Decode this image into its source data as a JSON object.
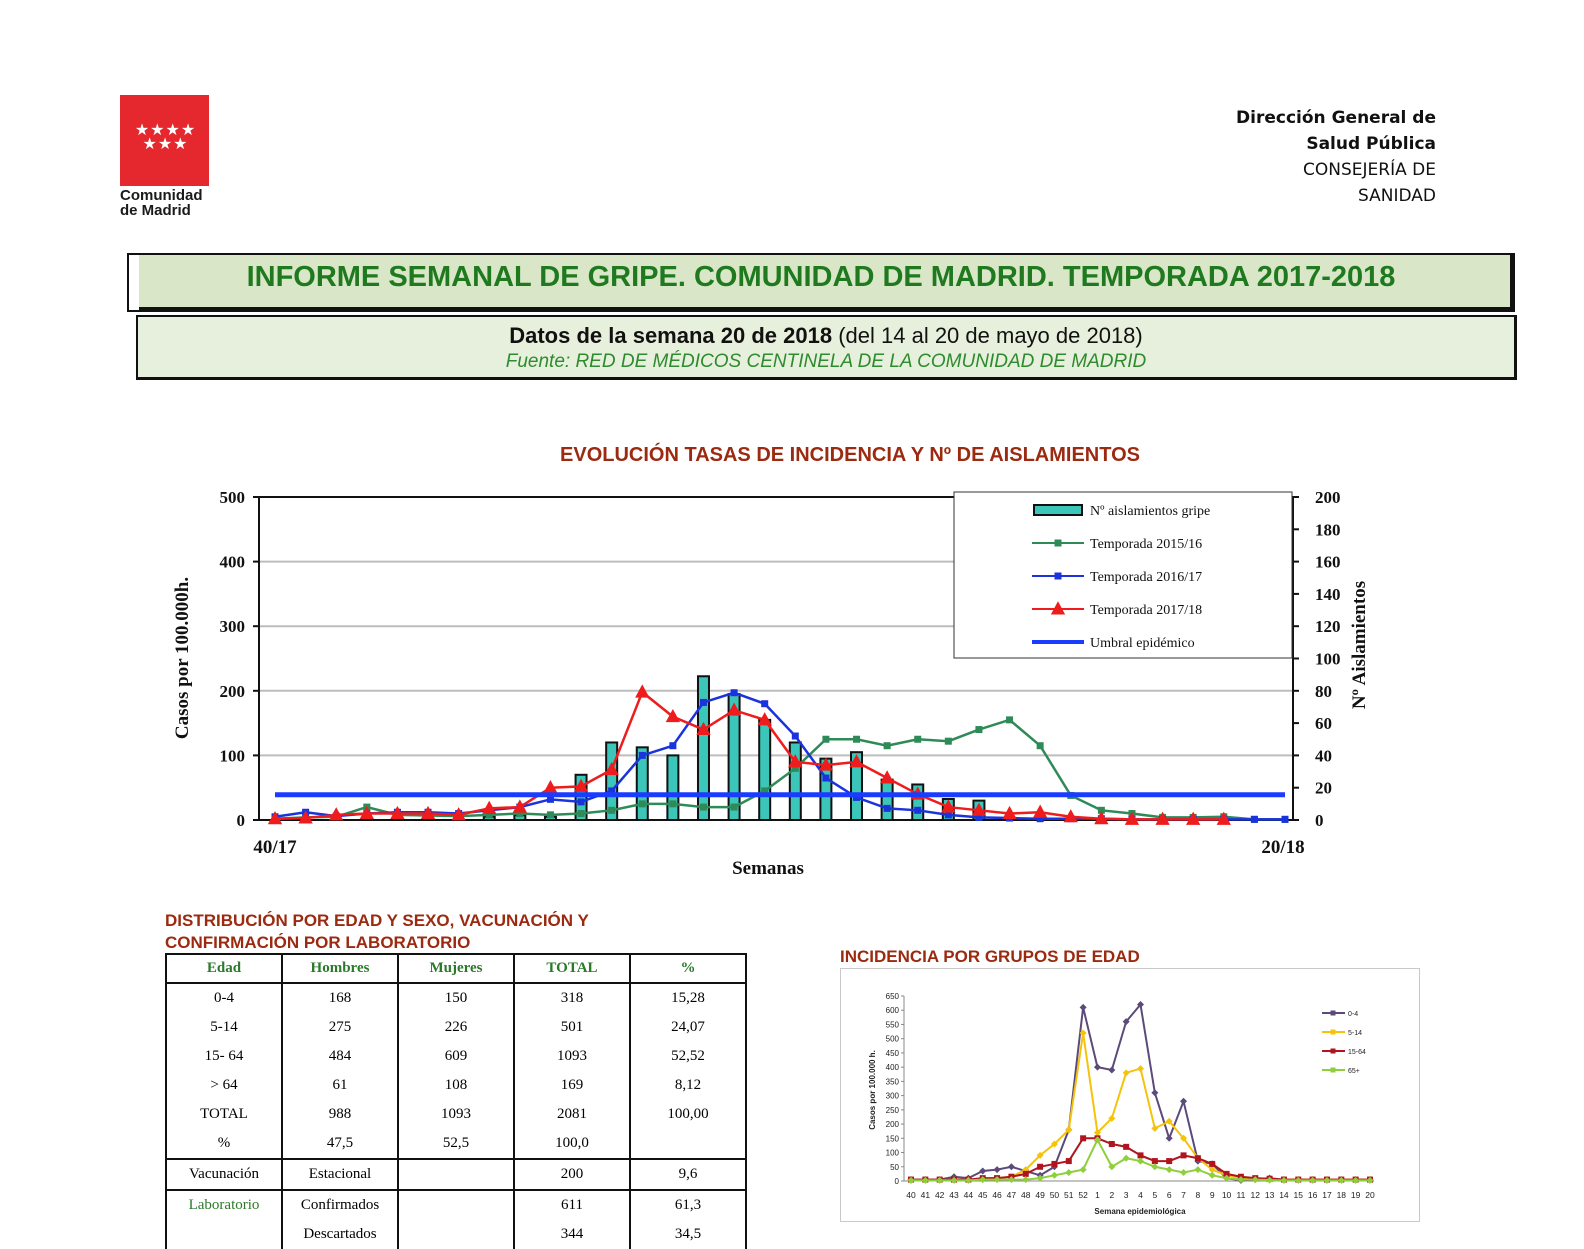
{
  "logo": {
    "text_line1": "Comunidad",
    "text_line2": "de Madrid",
    "stars": "★★★★ ★★★"
  },
  "header": {
    "dept_line1": "Dirección  General de",
    "dept_line2": "Salud Pública",
    "dept_line3": "CONSEJERÍA DE",
    "dept_line4": "SANIDAD"
  },
  "report": {
    "title": "INFORME SEMANAL DE GRIPE. COMUNIDAD DE MADRID. TEMPORADA 2017-2018",
    "week_bold": "Datos de la semana 20 de 2018",
    "week_rest": " (del 14 al 20 de mayo de 2018)",
    "source": "Fuente: RED DE MÉDICOS CENTINELA DE LA COMUNIDAD DE MADRID"
  },
  "colors": {
    "brand_red": "#e5282d",
    "title_green": "#1f7a1f",
    "section_red": "#9b2a10"
  },
  "chart_data": [
    {
      "type": "bar+line",
      "title": "EVOLUCIÓN TASAS DE INCIDENCIA Y Nº DE AISLAMIENTOS",
      "xlabel": "Semanas",
      "ylabel": "Casos por 100.000h.",
      "y2label": "Nº Aislamientos",
      "x_first": "40/17",
      "x_last": "20/18",
      "ylim": [
        0,
        500
      ],
      "y2lim": [
        0,
        200
      ],
      "yticks": [
        0,
        100,
        200,
        300,
        400,
        500
      ],
      "y2ticks": [
        0,
        20,
        40,
        60,
        80,
        100,
        120,
        140,
        160,
        180,
        200
      ],
      "legend_position": "top-right",
      "bars": {
        "name": "Nº aislamientos gripe",
        "axis": "y2",
        "color": "#3cc6b9",
        "values": [
          0,
          0,
          0,
          0,
          0,
          0,
          0,
          2,
          3,
          2,
          28,
          48,
          45,
          40,
          89,
          78,
          62,
          48,
          38,
          42,
          25,
          22,
          13,
          12,
          0,
          0,
          0,
          0,
          0,
          0,
          0,
          0,
          0,
          0
        ]
      },
      "series": [
        {
          "name": "Temporada 2015/16",
          "color": "#2e8b57",
          "marker": "square",
          "values": [
            2,
            4,
            5,
            20,
            8,
            7,
            6,
            8,
            10,
            8,
            10,
            15,
            25,
            25,
            20,
            20,
            45,
            80,
            125,
            125,
            115,
            125,
            122,
            140,
            155,
            115,
            38,
            15,
            10,
            4,
            4,
            5,
            1,
            1
          ]
        },
        {
          "name": "Temporada 2016/17",
          "color": "#1a33dd",
          "marker": "square",
          "values": [
            5,
            12,
            6,
            10,
            12,
            12,
            10,
            15,
            20,
            32,
            28,
            45,
            100,
            115,
            182,
            197,
            180,
            130,
            65,
            35,
            18,
            15,
            8,
            4,
            3,
            2,
            2,
            2,
            1,
            1,
            1,
            1,
            1,
            1
          ]
        },
        {
          "name": "Temporada 2017/18",
          "color": "#ee1c1c",
          "marker": "triangle",
          "values": [
            2,
            3,
            8,
            10,
            10,
            10,
            8,
            18,
            20,
            50,
            52,
            78,
            198,
            160,
            140,
            170,
            155,
            90,
            85,
            90,
            65,
            40,
            20,
            15,
            10,
            12,
            5,
            2,
            1,
            1,
            1,
            1,
            null,
            null
          ]
        },
        {
          "name": "Umbral epidémico",
          "color": "#1a3cff",
          "marker": "none",
          "values": [
            39,
            39,
            39,
            39,
            39,
            39,
            39,
            39,
            39,
            39,
            39,
            39,
            39,
            39,
            39,
            39,
            39,
            39,
            39,
            39,
            39,
            39,
            39,
            39,
            39,
            39,
            39,
            39,
            39,
            39,
            39,
            39,
            39,
            39
          ]
        }
      ]
    },
    {
      "type": "line",
      "title": "INCIDENCIA POR GRUPOS DE EDAD",
      "xlabel": "Semana epidemiológica",
      "ylabel": "Casos por 100.000 h.",
      "ylim": [
        0,
        650
      ],
      "yticks": [
        0,
        50,
        100,
        150,
        200,
        250,
        300,
        350,
        400,
        450,
        500,
        550,
        600,
        650
      ],
      "categories": [
        "40",
        "41",
        "42",
        "43",
        "44",
        "45",
        "46",
        "47",
        "48",
        "49",
        "50",
        "51",
        "52",
        "1",
        "2",
        "3",
        "4",
        "5",
        "6",
        "7",
        "8",
        "9",
        "10",
        "11",
        "12",
        "13",
        "14",
        "15",
        "16",
        "17",
        "18",
        "19",
        "20"
      ],
      "legend_position": "right",
      "series": [
        {
          "name": "0-4",
          "color": "#5b4a7a",
          "values": [
            5,
            5,
            5,
            15,
            10,
            35,
            40,
            50,
            35,
            20,
            50,
            180,
            610,
            400,
            390,
            560,
            620,
            310,
            150,
            280,
            70,
            60,
            10,
            2,
            5,
            10,
            5,
            5,
            5,
            5,
            5,
            5,
            5
          ]
        },
        {
          "name": "5-14",
          "color": "#f5c30a",
          "values": [
            2,
            3,
            3,
            5,
            5,
            5,
            10,
            15,
            40,
            90,
            130,
            180,
            520,
            170,
            220,
            380,
            395,
            185,
            210,
            150,
            80,
            40,
            20,
            10,
            5,
            5,
            5,
            5,
            5,
            5,
            5,
            5,
            5
          ]
        },
        {
          "name": "15-64",
          "color": "#b0141e",
          "values": [
            5,
            5,
            5,
            5,
            5,
            10,
            10,
            15,
            25,
            50,
            60,
            70,
            150,
            150,
            130,
            120,
            90,
            70,
            70,
            90,
            80,
            60,
            25,
            15,
            10,
            8,
            5,
            5,
            5,
            5,
            5,
            5,
            5
          ]
        },
        {
          "name": "65+",
          "color": "#8fcf3c",
          "values": [
            2,
            2,
            2,
            2,
            2,
            5,
            5,
            5,
            5,
            10,
            20,
            30,
            40,
            145,
            50,
            80,
            70,
            50,
            40,
            30,
            40,
            20,
            10,
            5,
            5,
            3,
            2,
            2,
            2,
            2,
            2,
            2,
            2
          ]
        }
      ]
    }
  ],
  "table": {
    "title_line1": "DISTRIBUCIÓN POR EDAD Y SEXO, VACUNACIÓN Y",
    "title_line2": "CONFIRMACIÓN POR LABORATORIO",
    "headers": [
      "Edad",
      "Hombres",
      "Mujeres",
      "TOTAL",
      "%"
    ],
    "age_rows": [
      [
        "0-4",
        "168",
        "150",
        "318",
        "15,28"
      ],
      [
        "5-14",
        "275",
        "226",
        "501",
        "24,07"
      ],
      [
        "15- 64",
        "484",
        "609",
        "1093",
        "52,52"
      ],
      [
        "> 64",
        "61",
        "108",
        "169",
        "8,12"
      ],
      [
        "TOTAL",
        "988",
        "1093",
        "2081",
        "100,00"
      ],
      [
        "%",
        "47,5",
        "52,5",
        "100,0",
        ""
      ]
    ],
    "vac_row": [
      "Vacunación",
      "Estacional",
      "",
      "200",
      "9,6"
    ],
    "lab_rows": [
      [
        "Laboratorio",
        "Confirmados",
        "",
        "611",
        "61,3"
      ],
      [
        "",
        "Descartados",
        "",
        "344",
        "34,5"
      ]
    ]
  }
}
